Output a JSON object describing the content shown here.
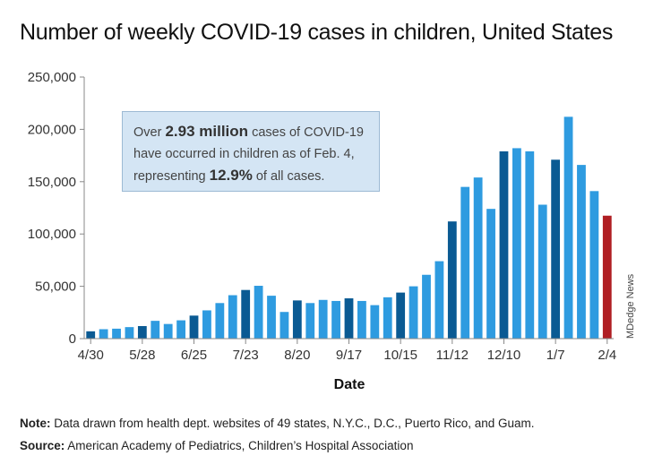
{
  "title": "Number of weekly COVID-19 cases in children, United States",
  "callout": {
    "line1_pre": "Over ",
    "line1_bold": "2.93 million",
    "line1_post": " cases of COVID-19",
    "line2": "have occurred in children as of Feb. 4,",
    "line3_pre": "representing ",
    "line3_bold": "12.9%",
    "line3_post": " of all cases."
  },
  "credit": "MDedge News",
  "note": {
    "label": "Note:",
    "text": " Data drawn from health dept. websites of 49 states, N.Y.C., D.C., Puerto Rico, and Guam."
  },
  "source": {
    "label": "Source:",
    "text": " American Academy of Pediatrics, Children’s Hospital Association"
  },
  "colors": {
    "light": "#2e9be0",
    "dark": "#0a5a93",
    "highlight": "#b01e23",
    "axis": "#888888"
  },
  "chart_data": {
    "type": "bar",
    "title": "Number of weekly COVID-19 cases in children, United States",
    "xlabel": "Date",
    "ylabel": "",
    "ylim": [
      0,
      250000
    ],
    "yticks": [
      0,
      50000,
      100000,
      150000,
      200000,
      250000
    ],
    "ytick_labels": [
      "0",
      "50,000",
      "100,000",
      "150,000",
      "200,000",
      "250,000"
    ],
    "grid": false,
    "xtick_labels": [
      "4/30",
      "5/28",
      "6/25",
      "7/23",
      "8/20",
      "9/17",
      "10/15",
      "11/12",
      "12/10",
      "1/7",
      "2/4"
    ],
    "values": [
      7000,
      9000,
      9500,
      11000,
      12000,
      17000,
      14000,
      17500,
      22000,
      27000,
      34000,
      41500,
      46500,
      50500,
      41000,
      25500,
      36500,
      34000,
      37000,
      36000,
      38500,
      36000,
      32000,
      39500,
      44000,
      50000,
      61000,
      74000,
      112000,
      145000,
      154000,
      124000,
      179000,
      182000,
      179000,
      128000,
      171000,
      212000,
      166000,
      141000,
      117500
    ],
    "bar_shades": [
      "dark",
      "light",
      "light",
      "light",
      "dark",
      "light",
      "light",
      "light",
      "dark",
      "light",
      "light",
      "light",
      "dark",
      "light",
      "light",
      "light",
      "dark",
      "light",
      "light",
      "light",
      "dark",
      "light",
      "light",
      "light",
      "dark",
      "light",
      "light",
      "light",
      "dark",
      "light",
      "light",
      "light",
      "dark",
      "light",
      "light",
      "light",
      "dark",
      "light",
      "light",
      "light",
      "highlight"
    ]
  }
}
